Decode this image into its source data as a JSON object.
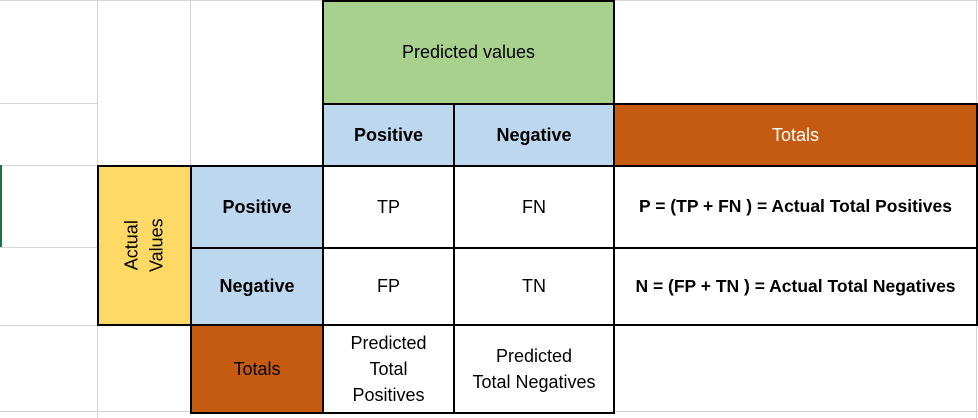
{
  "header": {
    "predicted_values": "Predicted values"
  },
  "columns": {
    "positive": "Positive",
    "negative": "Negative",
    "totals": "Totals"
  },
  "actual": {
    "line1": "Actual",
    "line2": "Values"
  },
  "rows": [
    {
      "label": "Positive",
      "c1": "TP",
      "c2": "FN",
      "total": "P = (TP + FN ) = Actual Total Positives"
    },
    {
      "label": "Negative",
      "c1": "FP",
      "c2": "TN",
      "total": "N = (FP + TN ) = Actual Total Negatives"
    }
  ],
  "totals_row": {
    "label": "Totals",
    "predicted_positives": [
      "Predicted",
      "Total",
      "Positives"
    ],
    "predicted_negatives": [
      "Predicted",
      "Total Negatives"
    ]
  },
  "colors": {
    "green": "#a9d18e",
    "blue": "#bdd7ee",
    "orange": "#c55a11",
    "yellow": "#ffd966"
  }
}
